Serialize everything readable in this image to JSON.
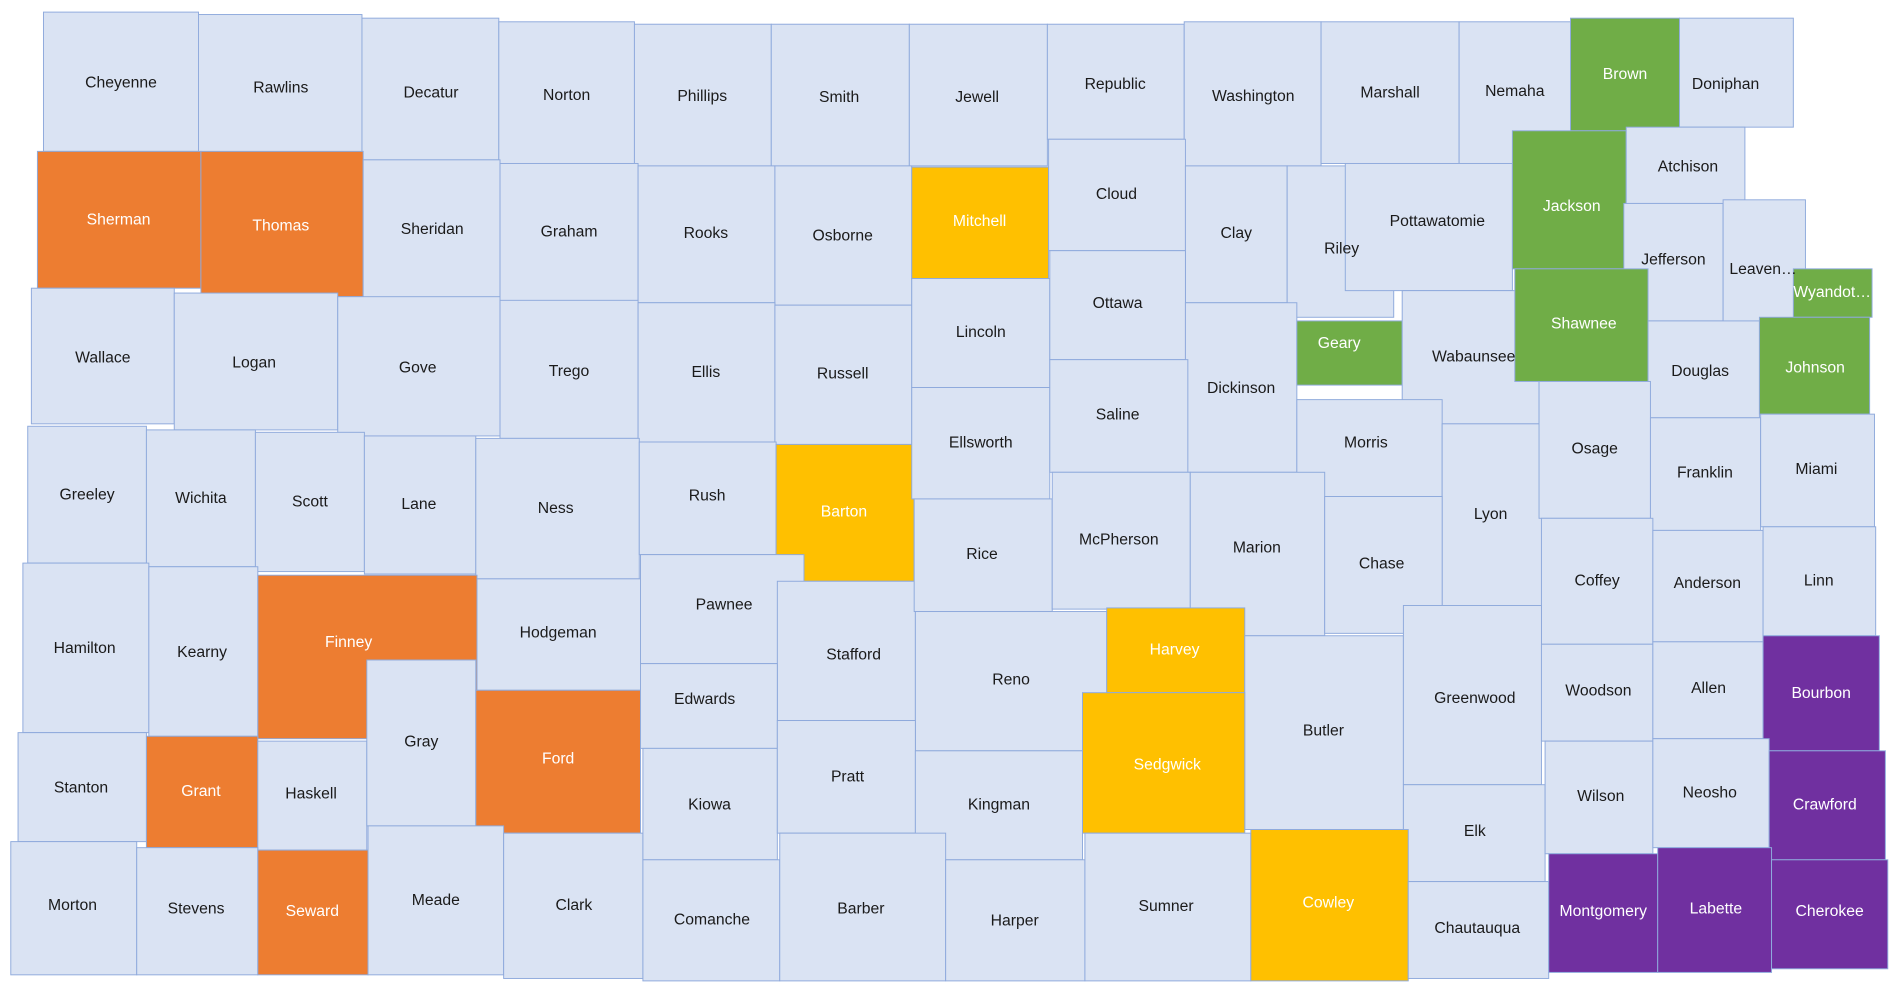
{
  "map": {
    "counties": [
      {
        "name": "Cheyenne",
        "color": "#dae3f3"
      },
      {
        "name": "Rawlins",
        "color": "#dae3f3"
      },
      {
        "name": "Decatur",
        "color": "#dae3f3"
      },
      {
        "name": "Norton",
        "color": "#dae3f3"
      },
      {
        "name": "Phillips",
        "color": "#dae3f3"
      },
      {
        "name": "Smith",
        "color": "#dae3f3"
      },
      {
        "name": "Jewell",
        "color": "#dae3f3"
      },
      {
        "name": "Republic",
        "color": "#dae3f3"
      },
      {
        "name": "Washington",
        "color": "#dae3f3"
      },
      {
        "name": "Marshall",
        "color": "#dae3f3"
      },
      {
        "name": "Nemaha",
        "color": "#dae3f3"
      },
      {
        "name": "Brown",
        "color": "#70ad47"
      },
      {
        "name": "Doniphan",
        "color": "#dae3f3"
      },
      {
        "name": "Sherman",
        "color": "#ed7d31"
      },
      {
        "name": "Thomas",
        "color": "#ed7d31"
      },
      {
        "name": "Sheridan",
        "color": "#dae3f3"
      },
      {
        "name": "Graham",
        "color": "#dae3f3"
      },
      {
        "name": "Rooks",
        "color": "#dae3f3"
      },
      {
        "name": "Osborne",
        "color": "#dae3f3"
      },
      {
        "name": "Mitchell",
        "color": "#ffc000"
      },
      {
        "name": "Cloud",
        "color": "#dae3f3"
      },
      {
        "name": "Clay",
        "color": "#dae3f3"
      },
      {
        "name": "Riley",
        "color": "#dae3f3"
      },
      {
        "name": "Pottawatomie",
        "color": "#dae3f3"
      },
      {
        "name": "Jackson",
        "color": "#70ad47"
      },
      {
        "name": "Atchison",
        "color": "#dae3f3"
      },
      {
        "name": "Jefferson",
        "color": "#dae3f3"
      },
      {
        "name": "Leaven…",
        "color": "#dae3f3"
      },
      {
        "name": "Wyandot…",
        "color": "#70ad47"
      },
      {
        "name": "Wallace",
        "color": "#dae3f3"
      },
      {
        "name": "Logan",
        "color": "#dae3f3"
      },
      {
        "name": "Gove",
        "color": "#dae3f3"
      },
      {
        "name": "Trego",
        "color": "#dae3f3"
      },
      {
        "name": "Ellis",
        "color": "#dae3f3"
      },
      {
        "name": "Russell",
        "color": "#dae3f3"
      },
      {
        "name": "Lincoln",
        "color": "#dae3f3"
      },
      {
        "name": "Ottawa",
        "color": "#dae3f3"
      },
      {
        "name": "Dickinson",
        "color": "#dae3f3"
      },
      {
        "name": "Geary",
        "color": "#70ad47"
      },
      {
        "name": "Wabaunsee",
        "color": "#dae3f3"
      },
      {
        "name": "Shawnee",
        "color": "#70ad47"
      },
      {
        "name": "Douglas",
        "color": "#dae3f3"
      },
      {
        "name": "Johnson",
        "color": "#70ad47"
      },
      {
        "name": "Greeley",
        "color": "#dae3f3"
      },
      {
        "name": "Wichita",
        "color": "#dae3f3"
      },
      {
        "name": "Scott",
        "color": "#dae3f3"
      },
      {
        "name": "Lane",
        "color": "#dae3f3"
      },
      {
        "name": "Ness",
        "color": "#dae3f3"
      },
      {
        "name": "Rush",
        "color": "#dae3f3"
      },
      {
        "name": "Barton",
        "color": "#ffc000"
      },
      {
        "name": "Ellsworth",
        "color": "#dae3f3"
      },
      {
        "name": "Saline",
        "color": "#dae3f3"
      },
      {
        "name": "Morris",
        "color": "#dae3f3"
      },
      {
        "name": "Lyon",
        "color": "#dae3f3"
      },
      {
        "name": "Osage",
        "color": "#dae3f3"
      },
      {
        "name": "Franklin",
        "color": "#dae3f3"
      },
      {
        "name": "Miami",
        "color": "#dae3f3"
      },
      {
        "name": "Hamilton",
        "color": "#dae3f3"
      },
      {
        "name": "Kearny",
        "color": "#dae3f3"
      },
      {
        "name": "Finney",
        "color": "#ed7d31"
      },
      {
        "name": "Hodgeman",
        "color": "#dae3f3"
      },
      {
        "name": "Pawnee",
        "color": "#dae3f3"
      },
      {
        "name": "Stafford",
        "color": "#dae3f3"
      },
      {
        "name": "Rice",
        "color": "#dae3f3"
      },
      {
        "name": "McPherson",
        "color": "#dae3f3"
      },
      {
        "name": "Marion",
        "color": "#dae3f3"
      },
      {
        "name": "Chase",
        "color": "#dae3f3"
      },
      {
        "name": "Coffey",
        "color": "#dae3f3"
      },
      {
        "name": "Anderson",
        "color": "#dae3f3"
      },
      {
        "name": "Linn",
        "color": "#dae3f3"
      },
      {
        "name": "Stanton",
        "color": "#dae3f3"
      },
      {
        "name": "Grant",
        "color": "#ed7d31"
      },
      {
        "name": "Haskell",
        "color": "#dae3f3"
      },
      {
        "name": "Gray",
        "color": "#dae3f3"
      },
      {
        "name": "Ford",
        "color": "#ed7d31"
      },
      {
        "name": "Edwards",
        "color": "#dae3f3"
      },
      {
        "name": "Reno",
        "color": "#dae3f3"
      },
      {
        "name": "Harvey",
        "color": "#ffc000"
      },
      {
        "name": "Butler",
        "color": "#dae3f3"
      },
      {
        "name": "Greenwood",
        "color": "#dae3f3"
      },
      {
        "name": "Woodson",
        "color": "#dae3f3"
      },
      {
        "name": "Allen",
        "color": "#dae3f3"
      },
      {
        "name": "Bourbon",
        "color": "#7030a0"
      },
      {
        "name": "Morton",
        "color": "#dae3f3"
      },
      {
        "name": "Stevens",
        "color": "#dae3f3"
      },
      {
        "name": "Seward",
        "color": "#ed7d31"
      },
      {
        "name": "Meade",
        "color": "#dae3f3"
      },
      {
        "name": "Clark",
        "color": "#dae3f3"
      },
      {
        "name": "Kiowa",
        "color": "#dae3f3"
      },
      {
        "name": "Pratt",
        "color": "#dae3f3"
      },
      {
        "name": "Kingman",
        "color": "#dae3f3"
      },
      {
        "name": "Sedgwick",
        "color": "#ffc000"
      },
      {
        "name": "Elk",
        "color": "#dae3f3"
      },
      {
        "name": "Wilson",
        "color": "#dae3f3"
      },
      {
        "name": "Neosho",
        "color": "#dae3f3"
      },
      {
        "name": "Crawford",
        "color": "#7030a0"
      },
      {
        "name": "Comanche",
        "color": "#dae3f3"
      },
      {
        "name": "Barber",
        "color": "#dae3f3"
      },
      {
        "name": "Harper",
        "color": "#dae3f3"
      },
      {
        "name": "Sumner",
        "color": "#dae3f3"
      },
      {
        "name": "Cowley",
        "color": "#ffc000"
      },
      {
        "name": "Chautauqua",
        "color": "#dae3f3"
      },
      {
        "name": "Montgomery",
        "color": "#7030a0"
      },
      {
        "name": "Labette",
        "color": "#7030a0"
      },
      {
        "name": "Cherokee",
        "color": "#7030a0"
      }
    ]
  }
}
